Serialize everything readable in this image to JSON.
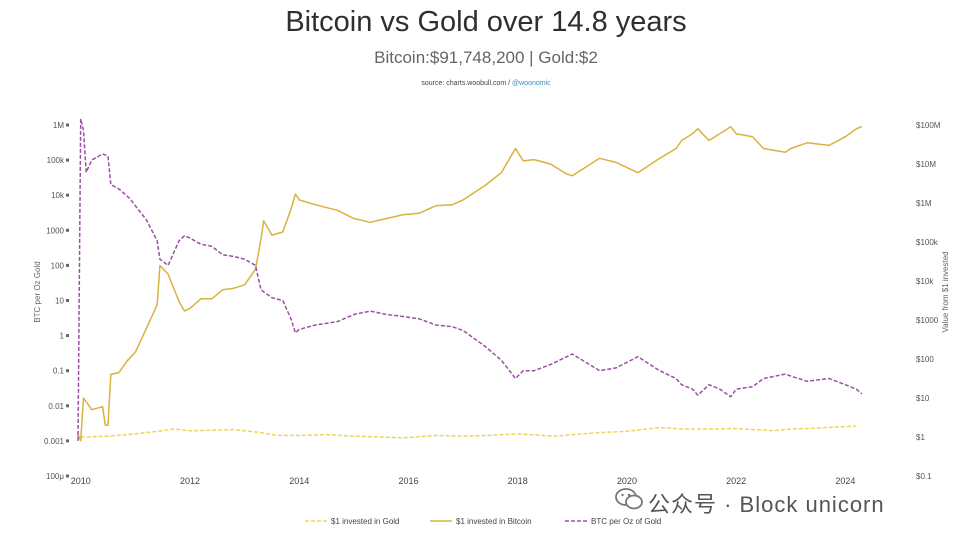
{
  "header": {
    "title": "Bitcoin vs Gold over 14.8 years",
    "subtitle": "Bitcoin:$91,748,200 | Gold:$2",
    "source_prefix": "source: charts.woobull.com / ",
    "source_handle": "@woonomic"
  },
  "watermark": {
    "text": "公众号 · Block unicorn"
  },
  "colors": {
    "gold": "#ecd657",
    "bitcoin": "#d9b23e",
    "btc_per_oz": "#9b4fa3",
    "axis_text": "#555555"
  },
  "chart_data": {
    "type": "line",
    "title": "Bitcoin vs Gold over 14.8 years",
    "subtitle": "Bitcoin:$91,748,200 | Gold:$2",
    "x_ticks": [
      "2010",
      "2012",
      "2014",
      "2016",
      "2018",
      "2020",
      "2022",
      "2024"
    ],
    "xlim": [
      2009.95,
      2024.45
    ],
    "left_axis": {
      "label": "BTC per Oz Gold",
      "scale": "log",
      "ticks": [
        "100μ",
        "0.001",
        "0.01",
        "0.1",
        "1",
        "10",
        "100",
        "1000",
        "10k",
        "100k",
        "1M"
      ],
      "ylim": [
        0.0001,
        1000000
      ]
    },
    "right_axis": {
      "label": "Value from $1 invested",
      "scale": "log",
      "ticks": [
        "$0.1",
        "$1",
        "$10",
        "$100",
        "$1000",
        "$10k",
        "$100k",
        "$1M",
        "$10M",
        "$100M"
      ],
      "ylim": [
        0.1,
        100000000
      ]
    },
    "legend_position": "bottom-center",
    "series": [
      {
        "name": "$1 invested in Gold",
        "axis": "right",
        "style": "dashed",
        "points": [
          [
            2010.0,
            1.0
          ],
          [
            2010.5,
            1.05
          ],
          [
            2011.0,
            1.2
          ],
          [
            2011.5,
            1.45
          ],
          [
            2011.7,
            1.6
          ],
          [
            2012.0,
            1.45
          ],
          [
            2012.5,
            1.5
          ],
          [
            2012.8,
            1.55
          ],
          [
            2013.3,
            1.3
          ],
          [
            2013.6,
            1.1
          ],
          [
            2014.0,
            1.1
          ],
          [
            2014.5,
            1.15
          ],
          [
            2015.0,
            1.05
          ],
          [
            2015.5,
            1.0
          ],
          [
            2015.9,
            0.95
          ],
          [
            2016.5,
            1.1
          ],
          [
            2017.0,
            1.05
          ],
          [
            2017.5,
            1.1
          ],
          [
            2018.0,
            1.2
          ],
          [
            2018.7,
            1.05
          ],
          [
            2019.0,
            1.15
          ],
          [
            2019.5,
            1.3
          ],
          [
            2020.0,
            1.4
          ],
          [
            2020.6,
            1.75
          ],
          [
            2021.0,
            1.6
          ],
          [
            2021.5,
            1.6
          ],
          [
            2022.0,
            1.65
          ],
          [
            2022.7,
            1.45
          ],
          [
            2023.0,
            1.6
          ],
          [
            2023.5,
            1.7
          ],
          [
            2024.0,
            1.85
          ],
          [
            2024.2,
            1.9
          ]
        ]
      },
      {
        "name": "$1 invested in Bitcoin",
        "axis": "right",
        "style": "solid",
        "points": [
          [
            2009.8,
            1.0
          ],
          [
            2009.95,
            1.2
          ],
          [
            2010.0,
            0.8
          ],
          [
            2010.05,
            10
          ],
          [
            2010.2,
            5
          ],
          [
            2010.4,
            6
          ],
          [
            2010.45,
            2
          ],
          [
            2010.5,
            2
          ],
          [
            2010.55,
            40
          ],
          [
            2010.7,
            45
          ],
          [
            2010.85,
            90
          ],
          [
            2011.0,
            150
          ],
          [
            2011.2,
            600
          ],
          [
            2011.4,
            2500
          ],
          [
            2011.45,
            25000
          ],
          [
            2011.6,
            15000
          ],
          [
            2011.8,
            3000
          ],
          [
            2011.9,
            1700
          ],
          [
            2012.0,
            2000
          ],
          [
            2012.2,
            3500
          ],
          [
            2012.4,
            3500
          ],
          [
            2012.6,
            6000
          ],
          [
            2012.8,
            6500
          ],
          [
            2013.0,
            8000
          ],
          [
            2013.2,
            20000
          ],
          [
            2013.3,
            120000
          ],
          [
            2013.35,
            350000
          ],
          [
            2013.5,
            150000
          ],
          [
            2013.7,
            180000
          ],
          [
            2013.85,
            700000
          ],
          [
            2013.93,
            1700000
          ],
          [
            2014.0,
            1200000
          ],
          [
            2014.3,
            900000
          ],
          [
            2014.7,
            650000
          ],
          [
            2015.0,
            400000
          ],
          [
            2015.3,
            320000
          ],
          [
            2015.6,
            400000
          ],
          [
            2015.9,
            500000
          ],
          [
            2016.2,
            550000
          ],
          [
            2016.5,
            850000
          ],
          [
            2016.8,
            900000
          ],
          [
            2017.0,
            1200000
          ],
          [
            2017.4,
            2800000
          ],
          [
            2017.7,
            6000000
          ],
          [
            2017.96,
            25000000
          ],
          [
            2018.1,
            12000000
          ],
          [
            2018.3,
            13000000
          ],
          [
            2018.6,
            10000000
          ],
          [
            2018.9,
            5500000
          ],
          [
            2019.0,
            5000000
          ],
          [
            2019.5,
            14000000
          ],
          [
            2019.8,
            11000000
          ],
          [
            2020.2,
            6000000
          ],
          [
            2020.6,
            14000000
          ],
          [
            2020.9,
            25000000
          ],
          [
            2021.0,
            40000000
          ],
          [
            2021.2,
            60000000
          ],
          [
            2021.3,
            80000000
          ],
          [
            2021.5,
            40000000
          ],
          [
            2021.7,
            60000000
          ],
          [
            2021.9,
            90000000
          ],
          [
            2022.0,
            60000000
          ],
          [
            2022.3,
            50000000
          ],
          [
            2022.5,
            25000000
          ],
          [
            2022.9,
            20000000
          ],
          [
            2023.0,
            25000000
          ],
          [
            2023.3,
            35000000
          ],
          [
            2023.7,
            30000000
          ],
          [
            2024.0,
            50000000
          ],
          [
            2024.2,
            80000000
          ],
          [
            2024.3,
            91748200
          ]
        ]
      },
      {
        "name": "BTC per Oz of Gold",
        "axis": "left",
        "style": "dashed",
        "points": [
          [
            2009.95,
            0.001
          ],
          [
            2010.0,
            1500000
          ],
          [
            2010.05,
            700000
          ],
          [
            2010.1,
            45000
          ],
          [
            2010.2,
            100000
          ],
          [
            2010.4,
            150000
          ],
          [
            2010.5,
            130000
          ],
          [
            2010.55,
            20000
          ],
          [
            2010.7,
            15000
          ],
          [
            2010.9,
            8000
          ],
          [
            2011.0,
            5000
          ],
          [
            2011.2,
            2000
          ],
          [
            2011.4,
            500
          ],
          [
            2011.45,
            150
          ],
          [
            2011.6,
            100
          ],
          [
            2011.8,
            500
          ],
          [
            2011.9,
            700
          ],
          [
            2012.0,
            600
          ],
          [
            2012.2,
            400
          ],
          [
            2012.4,
            350
          ],
          [
            2012.6,
            200
          ],
          [
            2012.8,
            180
          ],
          [
            2013.0,
            150
          ],
          [
            2013.2,
            100
          ],
          [
            2013.3,
            20
          ],
          [
            2013.5,
            12
          ],
          [
            2013.7,
            10
          ],
          [
            2013.85,
            3
          ],
          [
            2013.93,
            1.2
          ],
          [
            2014.0,
            1.5
          ],
          [
            2014.3,
            2
          ],
          [
            2014.7,
            2.5
          ],
          [
            2015.0,
            4
          ],
          [
            2015.3,
            5
          ],
          [
            2015.6,
            4
          ],
          [
            2015.9,
            3.5
          ],
          [
            2016.2,
            3
          ],
          [
            2016.5,
            2
          ],
          [
            2016.8,
            1.8
          ],
          [
            2017.0,
            1.4
          ],
          [
            2017.4,
            0.5
          ],
          [
            2017.7,
            0.2
          ],
          [
            2017.96,
            0.06
          ],
          [
            2018.1,
            0.1
          ],
          [
            2018.3,
            0.1
          ],
          [
            2018.6,
            0.15
          ],
          [
            2018.9,
            0.25
          ],
          [
            2019.0,
            0.3
          ],
          [
            2019.5,
            0.1
          ],
          [
            2019.8,
            0.12
          ],
          [
            2020.2,
            0.25
          ],
          [
            2020.6,
            0.1
          ],
          [
            2020.9,
            0.06
          ],
          [
            2021.0,
            0.04
          ],
          [
            2021.2,
            0.03
          ],
          [
            2021.3,
            0.02
          ],
          [
            2021.5,
            0.04
          ],
          [
            2021.7,
            0.03
          ],
          [
            2021.9,
            0.018
          ],
          [
            2022.0,
            0.03
          ],
          [
            2022.3,
            0.035
          ],
          [
            2022.5,
            0.06
          ],
          [
            2022.9,
            0.08
          ],
          [
            2023.0,
            0.07
          ],
          [
            2023.3,
            0.05
          ],
          [
            2023.7,
            0.06
          ],
          [
            2024.0,
            0.04
          ],
          [
            2024.2,
            0.03
          ],
          [
            2024.3,
            0.022
          ]
        ]
      }
    ]
  }
}
